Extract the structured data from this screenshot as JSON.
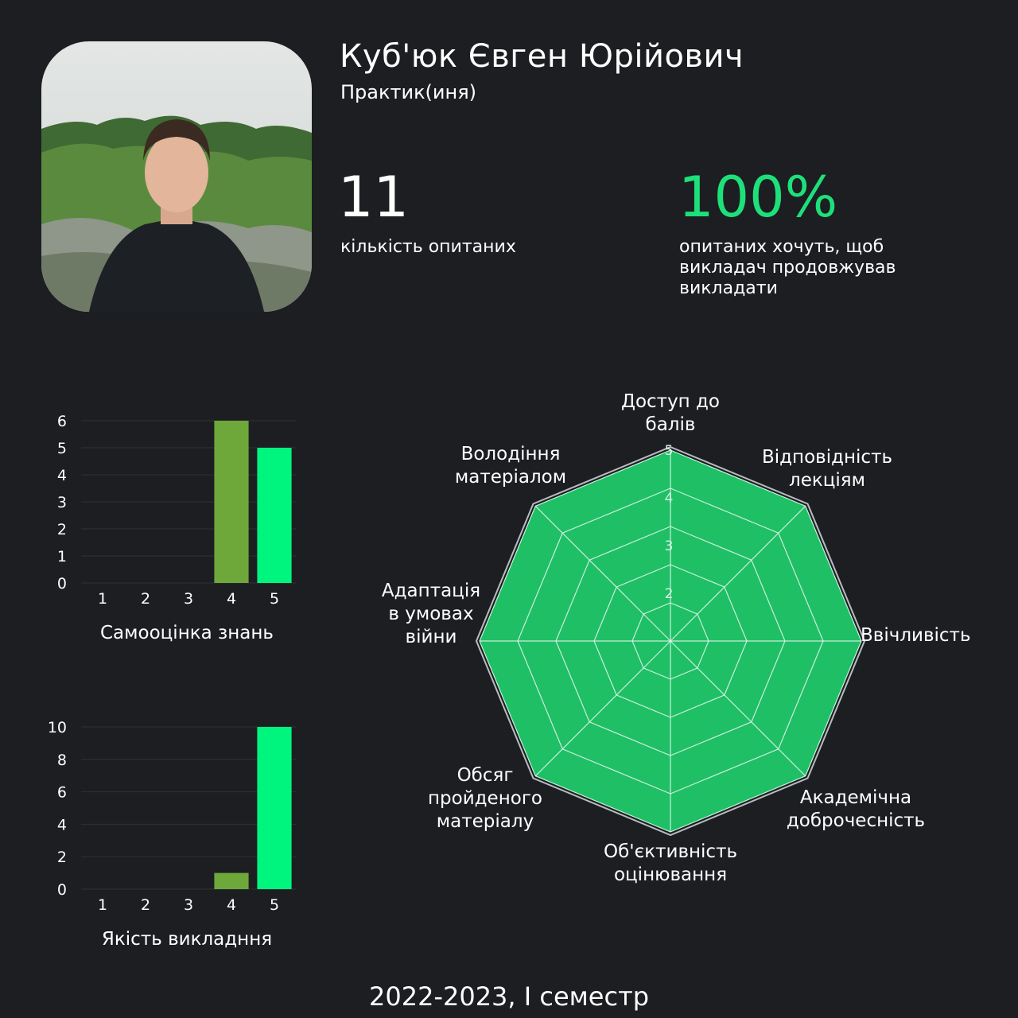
{
  "teacher": {
    "name": "Куб'юк Євген Юрійович",
    "role": "Практик(иня)"
  },
  "stats": {
    "respondents_value": "11",
    "respondents_label": "кількість опитаних",
    "continue_value": "100%",
    "continue_label": "опитаних хочуть, щоб викладач продовжував викладати"
  },
  "colors": {
    "background": "#1c1e21",
    "bar_muted": "#6ea83a",
    "bar_bright": "#00f57e",
    "radar_fill": "#1fbf66",
    "accent": "#1ee07a"
  },
  "footer": "2022-2023, I семестр",
  "chart_data": [
    {
      "type": "bar",
      "categories": [
        "1",
        "2",
        "3",
        "4",
        "5"
      ],
      "values": [
        0,
        0,
        0,
        6,
        5
      ],
      "xlabel": "Самооцінка знань",
      "ylim": [
        0,
        6
      ],
      "yticks": [
        "0",
        "1",
        "2",
        "3",
        "4",
        "5",
        "6"
      ],
      "grid": true
    },
    {
      "type": "bar",
      "categories": [
        "1",
        "2",
        "3",
        "4",
        "5"
      ],
      "values": [
        0,
        0,
        0,
        1,
        10
      ],
      "xlabel": "Якість викладння",
      "ylim": [
        0,
        10
      ],
      "yticks": [
        "0",
        "2",
        "4",
        "6",
        "8",
        "10"
      ],
      "grid": true
    },
    {
      "type": "radar",
      "axes": [
        "Доступ до балів",
        "Відповідність лекціям",
        "Ввічливість",
        "Академічна доброчесність",
        "Об'єктивність оцінювання",
        "Обсяг пройденого матеріалу",
        "Адаптація в умовах війни",
        "Володіння матеріалом"
      ],
      "axis_label_lines": [
        [
          "Доступ до",
          "балів"
        ],
        [
          "Відповідність",
          "лекціям"
        ],
        [
          "Ввічливість"
        ],
        [
          "Академічна",
          "доброчесність"
        ],
        [
          "Об'єктивність",
          "оцінювання"
        ],
        [
          "Обсяг",
          "пройденого",
          "матеріалу"
        ],
        [
          "Адаптація",
          "в умовах",
          "війни"
        ],
        [
          "Володіння",
          "матеріалом"
        ]
      ],
      "values": [
        5,
        5,
        5,
        5,
        5,
        5,
        5,
        5
      ],
      "max": 5,
      "rings": [
        1,
        2,
        3,
        4,
        5
      ],
      "ring_labels": [
        "2",
        "3",
        "4",
        "5"
      ]
    }
  ]
}
